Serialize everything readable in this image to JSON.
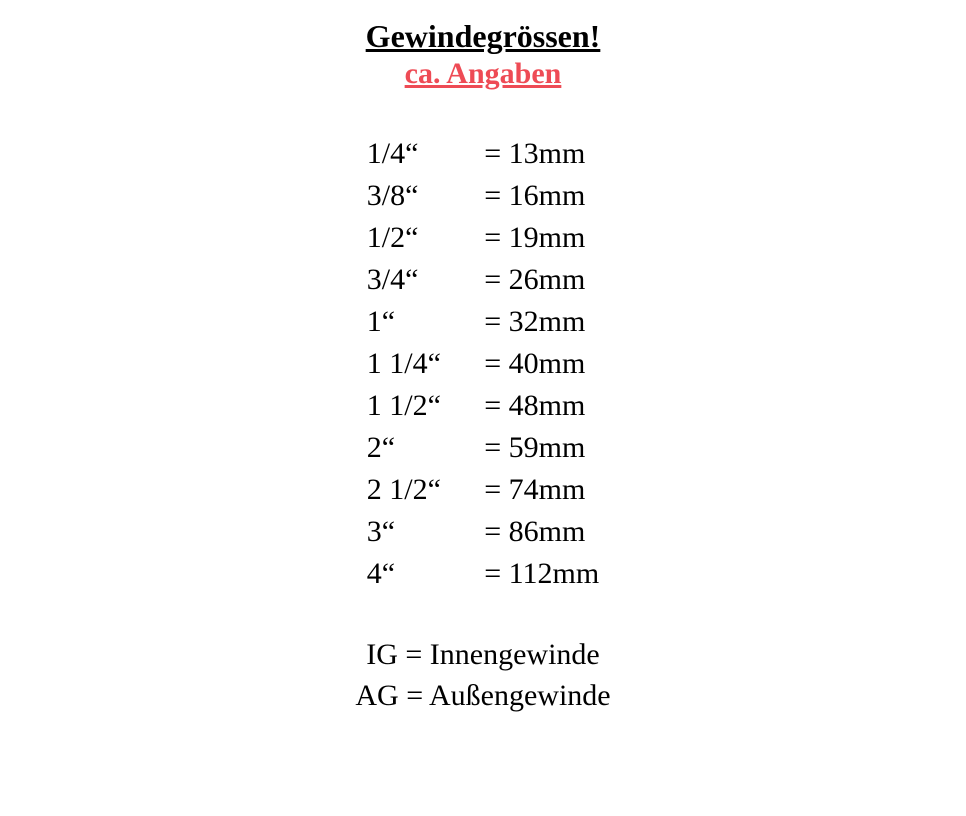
{
  "title": "Gewindegrössen!",
  "subtitle": "ca. Angaben",
  "title_color": "#000000",
  "subtitle_color": "#ee4b55",
  "background_color": "#ffffff",
  "text_color": "#000000",
  "font_family": "Georgia, 'Times New Roman', serif",
  "title_fontsize": 32,
  "body_fontsize": 30,
  "sizes": [
    {
      "key": "1/4“",
      "eq": "=",
      "value": "13mm"
    },
    {
      "key": "3/8“",
      "eq": "=",
      "value": "16mm"
    },
    {
      "key": "1/2“",
      "eq": "=",
      "value": "19mm"
    },
    {
      "key": "3/4“",
      "eq": "=",
      "value": "26mm"
    },
    {
      "key": "1“",
      "eq": "=",
      "value": "32mm"
    },
    {
      "key": "1 1/4“",
      "eq": "=",
      "value": "40mm"
    },
    {
      "key": "1 1/2“",
      "eq": "=",
      "value": "48mm"
    },
    {
      "key": "2“",
      "eq": "=",
      "value": "59mm"
    },
    {
      "key": "2 1/2“",
      "eq": "=",
      "value": "74mm"
    },
    {
      "key": "3“",
      "eq": "=",
      "value": "86mm"
    },
    {
      "key": "4“",
      "eq": "=",
      "value": "112mm"
    }
  ],
  "legend": [
    "IG = Innengewinde",
    "AG = Außengewinde"
  ]
}
